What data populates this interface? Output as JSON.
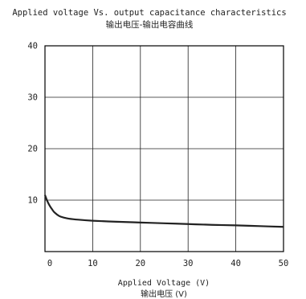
{
  "chart_data": {
    "type": "line",
    "title": "Applied voltage Vs. output capacitance characteristics",
    "subtitle": "输出电压-输出电容曲线",
    "xlabel": "Applied Voltage (V)",
    "xlabel_cn": "输出电压 (V)",
    "ylabel": "",
    "xlim": [
      0,
      50
    ],
    "ylim": [
      0,
      40
    ],
    "xticks": [
      0,
      10,
      20,
      30,
      40,
      50
    ],
    "yticks": [
      10,
      20,
      30,
      40
    ],
    "grid": true,
    "series": [
      {
        "color": "#222222",
        "x": [
          0,
          0.5,
          1,
          1.5,
          2,
          3,
          4,
          5,
          7,
          10,
          15,
          20,
          25,
          30,
          35,
          40,
          45,
          50
        ],
        "y": [
          11.0,
          9.8,
          8.9,
          8.2,
          7.6,
          6.9,
          6.6,
          6.4,
          6.2,
          6.0,
          5.8,
          5.65,
          5.5,
          5.35,
          5.2,
          5.1,
          4.95,
          4.8
        ]
      }
    ]
  }
}
